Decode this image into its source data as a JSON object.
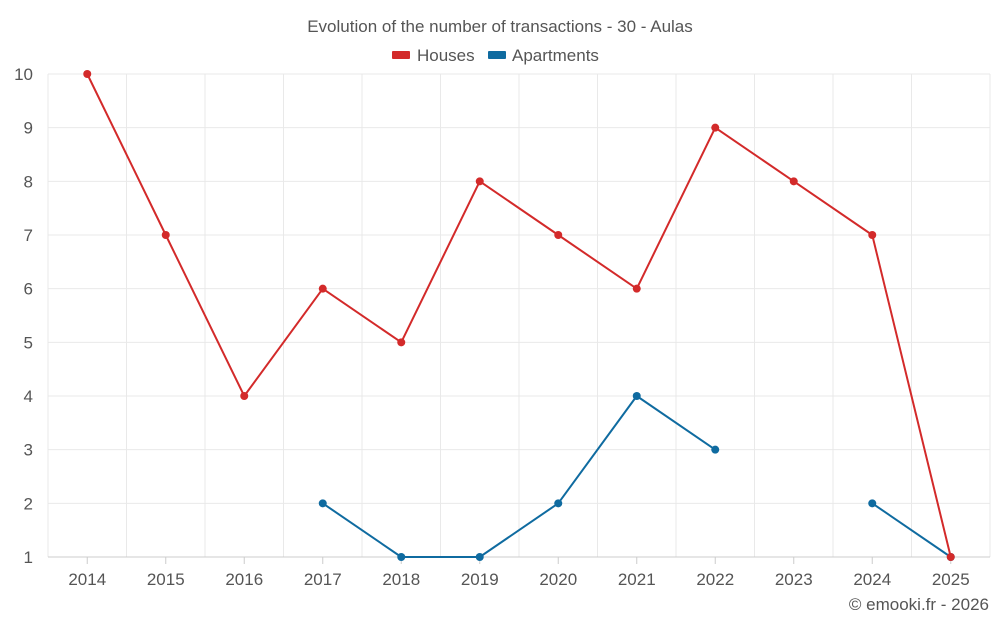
{
  "chart_data": {
    "type": "line",
    "title": "Evolution of the number of transactions - 30 - Aulas",
    "categories": [
      "2014",
      "2015",
      "2016",
      "2017",
      "2018",
      "2019",
      "2020",
      "2021",
      "2022",
      "2023",
      "2024",
      "2025"
    ],
    "ylim": [
      1,
      10
    ],
    "yticks": [
      "1",
      "2",
      "3",
      "4",
      "5",
      "6",
      "7",
      "8",
      "9",
      "10"
    ],
    "grid": true,
    "legend_position": "top-center",
    "series": [
      {
        "name": "Houses",
        "color": "#d32a2a",
        "values": [
          10,
          7,
          4,
          6,
          5,
          8,
          7,
          6,
          9,
          8,
          7,
          1
        ]
      },
      {
        "name": "Apartments",
        "color": "#0f6ba0",
        "values": [
          null,
          null,
          null,
          2,
          1,
          1,
          2,
          4,
          3,
          null,
          2,
          1
        ]
      }
    ],
    "xlabel": "",
    "ylabel": ""
  },
  "credit": "© emooki.fr - 2026"
}
